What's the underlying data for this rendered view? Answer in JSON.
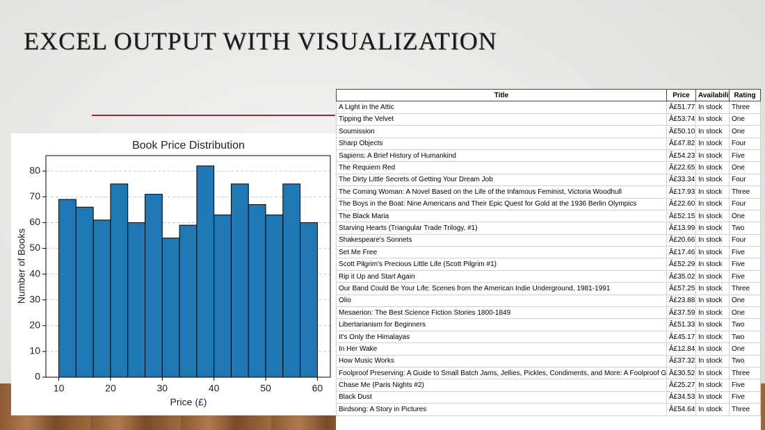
{
  "header": {
    "title": "EXCEL OUTPUT WITH VISUALIZATION"
  },
  "chart_data": {
    "type": "histogram",
    "title": "Book Price Distribution",
    "x_label": "Price (£)",
    "y_label": "Number of Books",
    "bins": [
      10,
      13.33,
      16.67,
      20,
      23.33,
      26.67,
      30,
      33.33,
      36.67,
      40,
      43.33,
      46.67,
      50,
      53.33,
      56.67,
      60
    ],
    "counts": [
      69,
      66,
      61,
      75,
      60,
      71,
      54,
      59,
      82,
      63,
      75,
      67,
      63,
      75,
      60
    ],
    "color": "#1f77b4",
    "edge_color": "#000000",
    "xlim": [
      7.5,
      62.5
    ],
    "xticks": [
      10,
      20,
      30,
      40,
      50,
      60
    ],
    "ylim": [
      0,
      86
    ],
    "yticks": [
      0,
      10,
      20,
      30,
      40,
      50,
      60,
      70,
      80
    ],
    "grid": true
  },
  "table": {
    "columns": [
      "Title",
      "Price",
      "Availability",
      "Rating"
    ],
    "rows": [
      [
        "A Light in the Attic",
        "Â£51.77",
        "In stock",
        "Three"
      ],
      [
        "Tipping the Velvet",
        "Â£53.74",
        "In stock",
        "One"
      ],
      [
        "Soumission",
        "Â£50.10",
        "In stock",
        "One"
      ],
      [
        "Sharp Objects",
        "Â£47.82",
        "In stock",
        "Four"
      ],
      [
        "Sapiens: A Brief History of Humankind",
        "Â£54.23",
        "In stock",
        "Five"
      ],
      [
        "The Requiem Red",
        "Â£22.65",
        "In stock",
        "One"
      ],
      [
        "The Dirty Little Secrets of Getting Your Dream Job",
        "Â£33.34",
        "In stock",
        "Four"
      ],
      [
        "The Coming Woman: A Novel Based on the Life of the Infamous Feminist, Victoria Woodhull",
        "Â£17.93",
        "In stock",
        "Three"
      ],
      [
        "The Boys in the Boat: Nine Americans and Their Epic Quest for Gold at the 1936 Berlin Olympics",
        "Â£22.60",
        "In stock",
        "Four"
      ],
      [
        "The Black Maria",
        "Â£52.15",
        "In stock",
        "One"
      ],
      [
        "Starving Hearts (Triangular Trade Trilogy, #1)",
        "Â£13.99",
        "In stock",
        "Two"
      ],
      [
        "Shakespeare's Sonnets",
        "Â£20.66",
        "In stock",
        "Four"
      ],
      [
        "Set Me Free",
        "Â£17.46",
        "In stock",
        "Five"
      ],
      [
        "Scott Pilgrim's Precious Little Life (Scott Pilgrim #1)",
        "Â£52.29",
        "In stock",
        "Five"
      ],
      [
        "Rip it Up and Start Again",
        "Â£35.02",
        "In stock",
        "Five"
      ],
      [
        "Our Band Could Be Your Life: Scenes from the American Indie Underground, 1981-1991",
        "Â£57.25",
        "In stock",
        "Three"
      ],
      [
        "Olio",
        "Â£23.88",
        "In stock",
        "One"
      ],
      [
        "Mesaerion: The Best Science Fiction Stories 1800-1849",
        "Â£37.59",
        "In stock",
        "One"
      ],
      [
        "Libertarianism for Beginners",
        "Â£51.33",
        "In stock",
        "Two"
      ],
      [
        "It's Only the Himalayas",
        "Â£45.17",
        "In stock",
        "Two"
      ],
      [
        "In Her Wake",
        "Â£12.84",
        "In stock",
        "One"
      ],
      [
        "How Music Works",
        "Â£37.32",
        "In stock",
        "Two"
      ],
      [
        "Foolproof Preserving: A Guide to Small Batch Jams, Jellies, Pickles, Condiments, and More: A Foolproof Guide to Maki",
        "Â£30.52",
        "In stock",
        "Three"
      ],
      [
        "Chase Me (Paris Nights #2)",
        "Â£25.27",
        "In stock",
        "Five"
      ],
      [
        "Black Dust",
        "Â£34.53",
        "In stock",
        "Five"
      ],
      [
        "Birdsong: A Story in Pictures",
        "Â£54.64",
        "In stock",
        "Three"
      ]
    ]
  }
}
